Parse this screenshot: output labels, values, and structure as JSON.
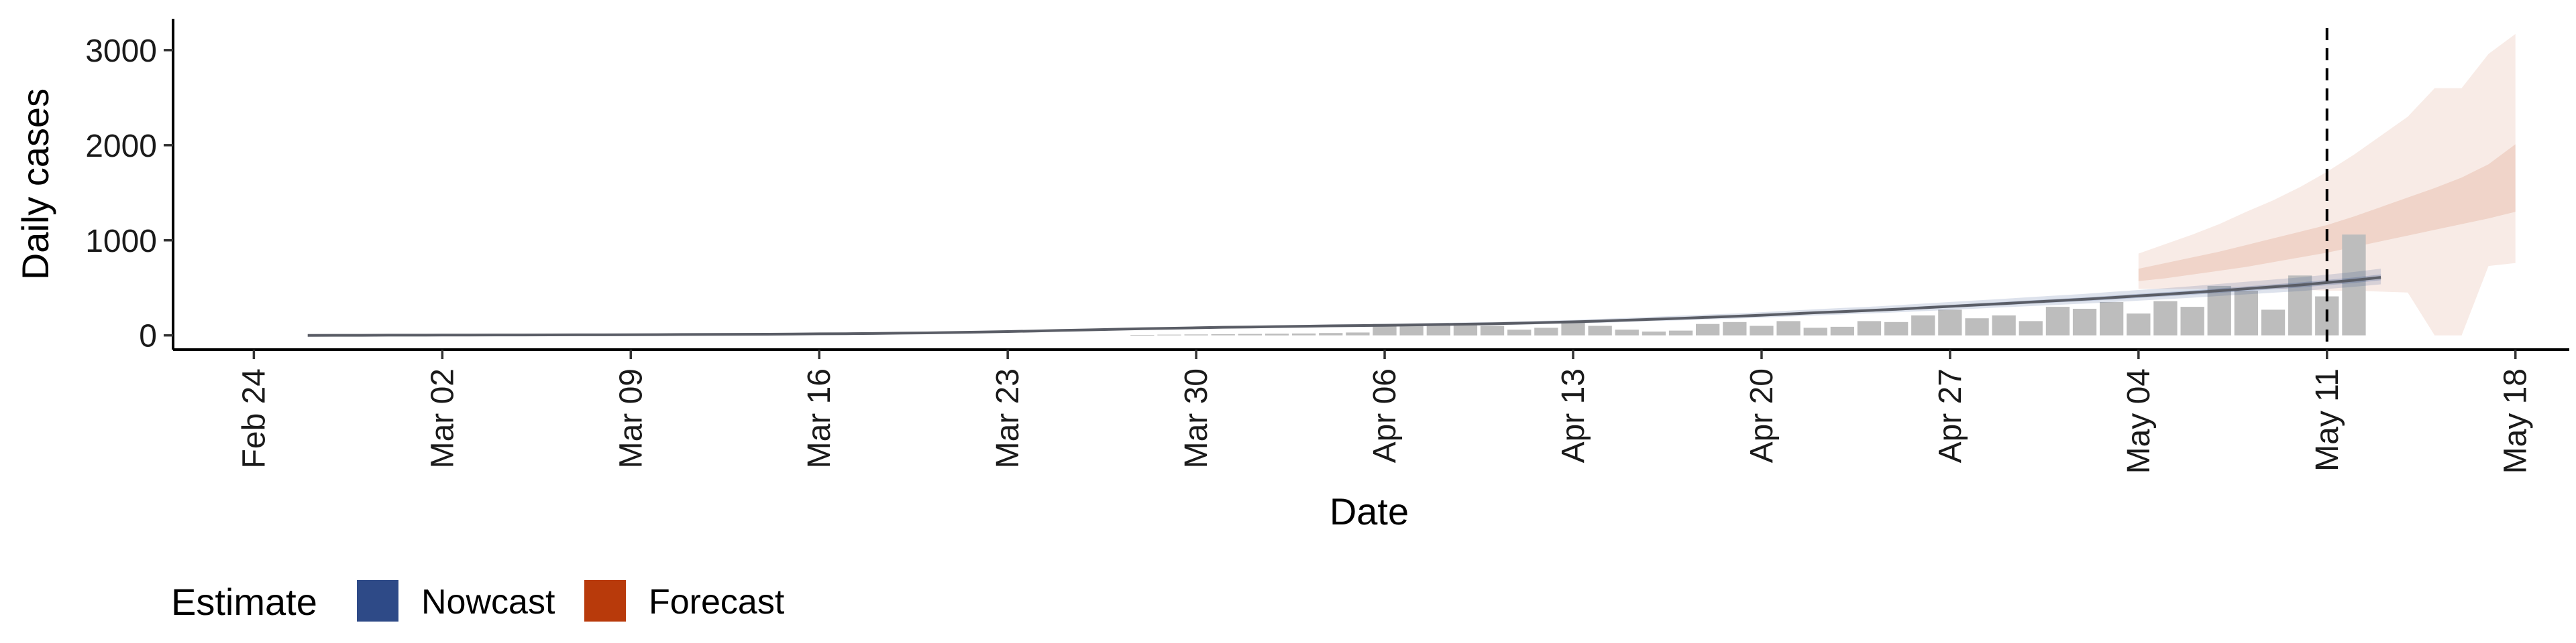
{
  "chart_data": {
    "type": "bar",
    "xlabel": "Date",
    "ylabel": "Daily cases",
    "x_ticks": [
      "Feb 24",
      "Mar 02",
      "Mar 09",
      "Mar 16",
      "Mar 23",
      "Mar 30",
      "Apr 06",
      "Apr 13",
      "Apr 20",
      "Apr 27",
      "May 04",
      "May 11",
      "May 18"
    ],
    "y_ticks": [
      0,
      1000,
      2000,
      3000
    ],
    "ylim": [
      -150,
      3330
    ],
    "xlim": [
      "2020-02-21",
      "2020-05-20"
    ],
    "reference_line_date": "2020-05-11",
    "legend": {
      "title": "Estimate",
      "position": "bottom-left",
      "items": [
        {
          "label": "Nowcast",
          "color": "#2e4a87"
        },
        {
          "label": "Forecast",
          "color": "#b83a0b"
        }
      ]
    },
    "colors": {
      "bars": "#bdbdbd",
      "nowcast": "#2e4a87",
      "forecast": "#b83a0b",
      "reference_line": "#000000"
    },
    "reported_cases": {
      "start_date": "2020-03-28",
      "values": [
        5,
        8,
        10,
        12,
        15,
        18,
        20,
        25,
        30,
        120,
        100,
        110,
        130,
        100,
        60,
        80,
        140,
        100,
        60,
        40,
        50,
        120,
        140,
        100,
        150,
        80,
        90,
        150,
        140,
        210,
        270,
        180,
        210,
        150,
        300,
        280,
        350,
        230,
        360,
        300,
        520,
        470,
        270,
        630,
        410,
        1060
      ]
    },
    "nowcast": {
      "start_date": "2020-02-26",
      "median": [
        0,
        1,
        1,
        2,
        2,
        3,
        3,
        4,
        4,
        5,
        6,
        6,
        7,
        8,
        9,
        10,
        11,
        12,
        14,
        16,
        18,
        20,
        23,
        26,
        30,
        35,
        40,
        46,
        52,
        58,
        64,
        70,
        75,
        80,
        85,
        88,
        92,
        96,
        100,
        103,
        106,
        110,
        114,
        118,
        122,
        128,
        135,
        142,
        150,
        160,
        170,
        180,
        190,
        200,
        212,
        225,
        238,
        250,
        262,
        275,
        290,
        305,
        320,
        335,
        350,
        365,
        380,
        397,
        415,
        432,
        450,
        470,
        490,
        510,
        530,
        555,
        580,
        610
      ],
      "inner_lower": [
        0,
        0,
        1,
        1,
        2,
        2,
        3,
        3,
        4,
        4,
        5,
        5,
        6,
        7,
        8,
        9,
        10,
        11,
        12,
        14,
        16,
        18,
        21,
        24,
        28,
        32,
        37,
        43,
        49,
        54,
        60,
        66,
        71,
        76,
        81,
        84,
        88,
        92,
        95,
        98,
        101,
        105,
        109,
        112,
        116,
        122,
        128,
        135,
        143,
        152,
        162,
        171,
        181,
        190,
        201,
        214,
        226,
        238,
        249,
        261,
        276,
        290,
        304,
        318,
        333,
        347,
        361,
        377,
        394,
        410,
        428,
        447,
        466,
        485,
        504,
        527,
        551,
        580
      ],
      "inner_upper": [
        1,
        1,
        2,
        2,
        3,
        3,
        4,
        4,
        5,
        6,
        6,
        7,
        8,
        9,
        10,
        11,
        12,
        13,
        15,
        17,
        19,
        21,
        24,
        28,
        32,
        37,
        43,
        49,
        55,
        61,
        67,
        73,
        79,
        84,
        89,
        92,
        96,
        100,
        105,
        108,
        111,
        115,
        120,
        124,
        128,
        134,
        142,
        149,
        158,
        168,
        179,
        189,
        200,
        210,
        223,
        236,
        250,
        263,
        275,
        289,
        305,
        320,
        336,
        352,
        368,
        383,
        399,
        417,
        436,
        454,
        473,
        494,
        515,
        536,
        557,
        583,
        609,
        641
      ],
      "outer_lower": [
        0,
        0,
        0,
        1,
        1,
        2,
        2,
        3,
        3,
        4,
        4,
        5,
        5,
        6,
        7,
        8,
        9,
        10,
        11,
        13,
        15,
        17,
        19,
        22,
        26,
        30,
        34,
        40,
        45,
        50,
        55,
        61,
        66,
        70,
        75,
        78,
        81,
        85,
        88,
        91,
        93,
        97,
        100,
        104,
        107,
        113,
        119,
        125,
        132,
        141,
        150,
        158,
        167,
        176,
        187,
        198,
        209,
        220,
        231,
        242,
        255,
        268,
        282,
        295,
        308,
        321,
        334,
        349,
        365,
        380,
        396,
        414,
        431,
        449,
        466,
        488,
        510,
        537
      ],
      "outer_upper": [
        2,
        2,
        3,
        3,
        4,
        4,
        5,
        5,
        6,
        7,
        7,
        8,
        9,
        10,
        11,
        12,
        13,
        15,
        17,
        19,
        21,
        23,
        27,
        30,
        35,
        40,
        46,
        53,
        60,
        67,
        74,
        80,
        86,
        92,
        97,
        101,
        106,
        110,
        115,
        118,
        122,
        127,
        131,
        136,
        141,
        147,
        155,
        163,
        173,
        184,
        196,
        207,
        219,
        230,
        244,
        259,
        274,
        288,
        301,
        316,
        334,
        351,
        368,
        385,
        403,
        420,
        437,
        457,
        477,
        497,
        518,
        541,
        564,
        587,
        610,
        638,
        667,
        702
      ]
    },
    "forecast": {
      "start_date": "2020-05-04",
      "inner_lower": [
        570,
        600,
        640,
        680,
        720,
        770,
        820,
        870,
        930,
        990,
        1050,
        1110,
        1170,
        1230,
        1300
      ],
      "inner_upper": [
        700,
        760,
        820,
        880,
        950,
        1020,
        1090,
        1160,
        1250,
        1350,
        1450,
        1550,
        1660,
        1800,
        2010
      ],
      "outer_lower": [
        490,
        490,
        490,
        490,
        490,
        490,
        480,
        470,
        470,
        460,
        450,
        0,
        0,
        730,
        760
      ],
      "outer_upper": [
        860,
        960,
        1060,
        1170,
        1300,
        1420,
        1560,
        1720,
        1900,
        2100,
        2300,
        2600,
        2600,
        2960,
        3170
      ]
    }
  }
}
